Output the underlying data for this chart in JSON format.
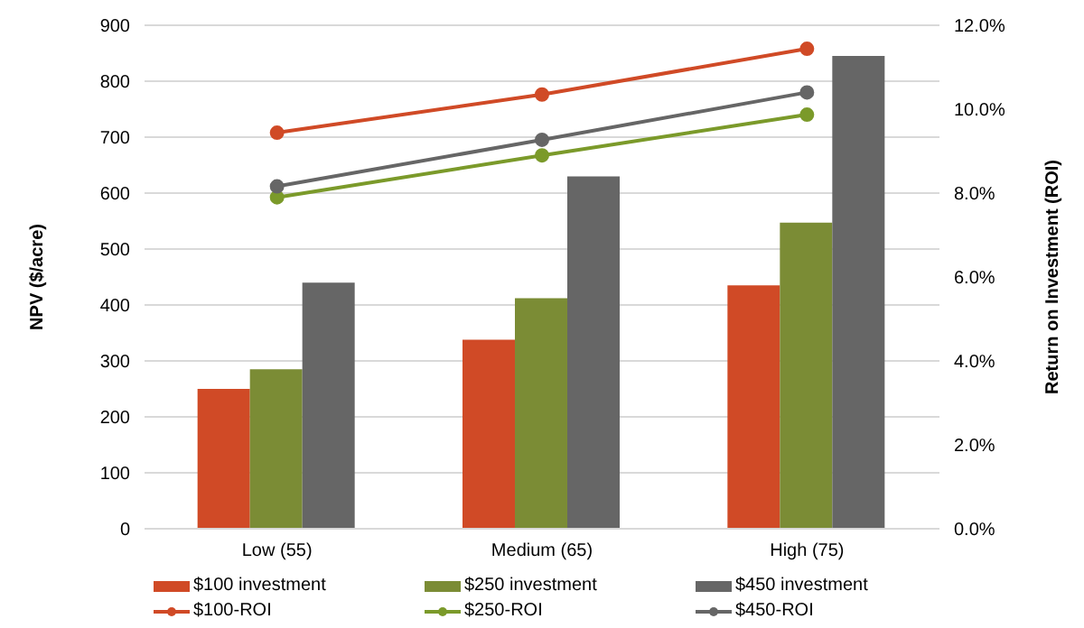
{
  "chart_data": {
    "type": "bar",
    "categories": [
      "Low (55)",
      "Medium (65)",
      "High (75)"
    ],
    "series": [
      {
        "name": "$100 investment",
        "color": "#d04a26",
        "values": [
          250,
          338,
          435
        ]
      },
      {
        "name": "$250 investment",
        "color": "#7b8c35",
        "values": [
          285,
          412,
          547
        ]
      },
      {
        "name": "$450 investment",
        "color": "#666666",
        "values": [
          440,
          630,
          845
        ]
      },
      {
        "name": "$100-ROI",
        "type": "line",
        "axis": "y2",
        "color": "#d04a26",
        "values": [
          9.44,
          10.35,
          11.44
        ]
      },
      {
        "name": "$250-ROI",
        "type": "line",
        "axis": "y2",
        "color": "#7b9a2a",
        "values": [
          7.9,
          8.9,
          9.87
        ]
      },
      {
        "name": "$450-ROI",
        "type": "line",
        "axis": "y2",
        "color": "#666666",
        "values": [
          8.16,
          9.27,
          10.4
        ]
      }
    ],
    "ylabel": "NPV ($/acre)",
    "y2label": "Return on Investment (ROI)",
    "ylim": [
      0,
      900
    ],
    "yticks": [
      0,
      100,
      200,
      300,
      400,
      500,
      600,
      700,
      800,
      900
    ],
    "y2lim": [
      0,
      12
    ],
    "y2ticks": [
      {
        "value": 0,
        "label": "0.0%"
      },
      {
        "value": 2,
        "label": "2.0%"
      },
      {
        "value": 4,
        "label": "4.0%"
      },
      {
        "value": 6,
        "label": "6.0%"
      },
      {
        "value": 8,
        "label": "8.0%"
      },
      {
        "value": 10,
        "label": "10.0%"
      },
      {
        "value": 12,
        "label": "12.0%"
      }
    ],
    "grid": "y",
    "legend": "bottom",
    "marker": "circle",
    "line_style": "solid"
  }
}
